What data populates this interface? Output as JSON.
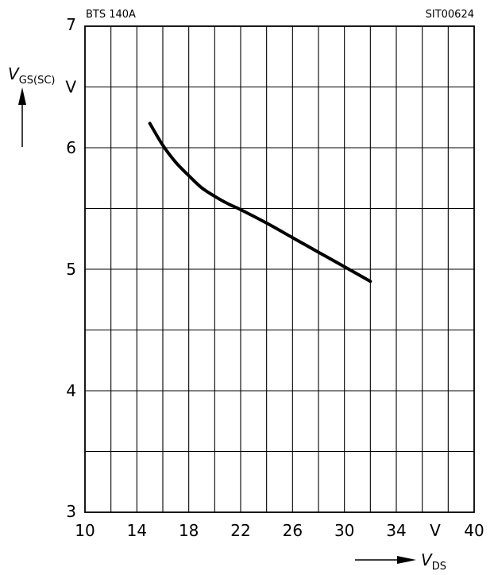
{
  "header": {
    "left": "BTS 140A",
    "right": "SIT00624"
  },
  "chart_data": {
    "type": "line",
    "grid": true,
    "xlim": [
      10,
      40
    ],
    "ylim": [
      3,
      7
    ],
    "x_ticks": [
      10,
      14,
      18,
      22,
      26,
      30,
      34,
      40
    ],
    "x_unit": "V",
    "y_ticks": [
      3,
      4,
      5,
      6,
      7
    ],
    "y_unit": "V",
    "xlabel": {
      "main": "V",
      "sub": "DS"
    },
    "ylabel": {
      "main": "V",
      "sub": "GS(SC)"
    },
    "series": [
      {
        "x": [
          15,
          16,
          17,
          18,
          19,
          20,
          21,
          22,
          24,
          26,
          28,
          30,
          32
        ],
        "y": [
          6.2,
          6.02,
          5.88,
          5.77,
          5.67,
          5.6,
          5.54,
          5.49,
          5.38,
          5.26,
          5.14,
          5.02,
          4.9
        ]
      }
    ]
  }
}
